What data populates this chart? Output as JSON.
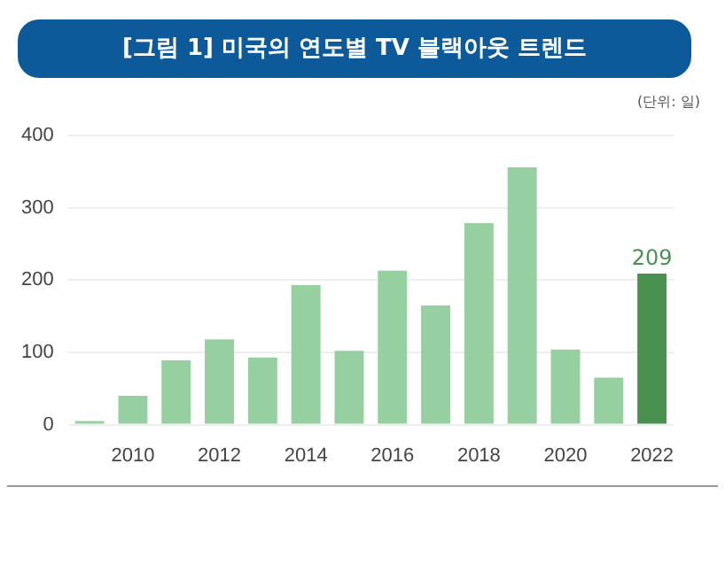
{
  "chart_data": {
    "type": "bar",
    "title": "[그림 1] 미국의 연도별 TV 블랙아웃 트렌드",
    "annotations": [
      "(단위: 일)"
    ],
    "categories": [
      null,
      "2010",
      null,
      "2012",
      null,
      "2014",
      null,
      "2016",
      null,
      "2018",
      null,
      "2020",
      null,
      "2022"
    ],
    "values": [
      5,
      40,
      89,
      118,
      93,
      193,
      102,
      213,
      165,
      279,
      356,
      104,
      65,
      209
    ],
    "colors": [
      "#96cfa0",
      "#96cfa0",
      "#96cfa0",
      "#96cfa0",
      "#96cfa0",
      "#96cfa0",
      "#96cfa0",
      "#96cfa0",
      "#96cfa0",
      "#96cfa0",
      "#96cfa0",
      "#96cfa0",
      "#96cfa0",
      "#4a9150"
    ],
    "value_labels": [
      null,
      null,
      null,
      null,
      null,
      null,
      null,
      null,
      null,
      null,
      null,
      null,
      null,
      "209"
    ],
    "ylim": [
      0,
      400
    ],
    "yticks": [
      0,
      100,
      200,
      300,
      400
    ],
    "grid": "y",
    "legend": false
  }
}
